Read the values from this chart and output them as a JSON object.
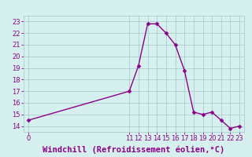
{
  "x": [
    0,
    11,
    12,
    13,
    14,
    15,
    16,
    17,
    18,
    19,
    20,
    21,
    22,
    23
  ],
  "y": [
    14.5,
    17.0,
    19.2,
    22.8,
    22.8,
    22.0,
    21.0,
    18.8,
    15.2,
    15.0,
    15.2,
    14.5,
    13.8,
    14.0
  ],
  "line_color": "#8B008B",
  "marker_color": "#8B008B",
  "bg_color": "#D6F0F0",
  "grid_color": "#AACECE",
  "xlabel": "Windchill (Refroidissement éolien,°C)",
  "xlabel_color": "#8B008B",
  "ylim": [
    13.5,
    23.5
  ],
  "xlim": [
    -0.5,
    23.5
  ],
  "yticks": [
    14,
    15,
    16,
    17,
    18,
    19,
    20,
    21,
    22,
    23
  ],
  "xticks": [
    0,
    11,
    12,
    13,
    14,
    15,
    16,
    17,
    18,
    19,
    20,
    21,
    22,
    23
  ],
  "tick_color": "#8B008B",
  "tick_fontsize": 6.0,
  "xlabel_fontsize": 7.5,
  "marker_size": 2.5,
  "line_width": 1.0
}
